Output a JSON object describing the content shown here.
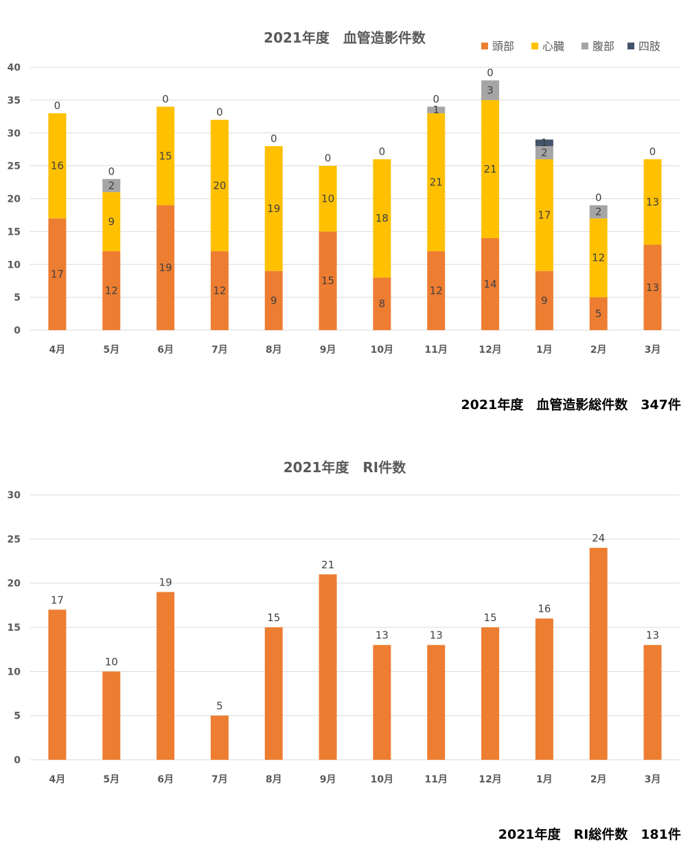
{
  "chart_data": [
    {
      "type": "bar",
      "stacked": true,
      "title": "2021年度　血管造影件数",
      "categories": [
        "4月",
        "5月",
        "6月",
        "7月",
        "8月",
        "9月",
        "10月",
        "11月",
        "12月",
        "1月",
        "2月",
        "3月"
      ],
      "ylim": [
        0,
        40
      ],
      "yticks": [
        0,
        5,
        10,
        15,
        20,
        25,
        30,
        35,
        40
      ],
      "grid": true,
      "legend_position": "top-right",
      "series": [
        {
          "name": "頭部",
          "color": "#ED7D31",
          "values": [
            17,
            12,
            19,
            12,
            9,
            15,
            8,
            12,
            14,
            9,
            5,
            13
          ]
        },
        {
          "name": "心臓",
          "color": "#FFC000",
          "values": [
            16,
            9,
            15,
            20,
            19,
            10,
            18,
            21,
            21,
            17,
            12,
            13
          ]
        },
        {
          "name": "腹部",
          "color": "#A5A5A5",
          "values": [
            0,
            2,
            0,
            0,
            0,
            0,
            0,
            1,
            3,
            2,
            2,
            0
          ]
        },
        {
          "name": "四肢",
          "color": "#44546A",
          "values": [
            0,
            0,
            0,
            0,
            0,
            0,
            0,
            0,
            0,
            1,
            0,
            0
          ]
        }
      ],
      "footer_total": "2021年度　血管造影総件数　347件"
    },
    {
      "type": "bar",
      "title": "2021年度　RI件数",
      "categories": [
        "4月",
        "5月",
        "6月",
        "7月",
        "8月",
        "9月",
        "10月",
        "11月",
        "12月",
        "1月",
        "2月",
        "3月"
      ],
      "ylim": [
        0,
        30
      ],
      "yticks": [
        0,
        5,
        10,
        15,
        20,
        25,
        30
      ],
      "grid": true,
      "series": [
        {
          "color": "#ED7D31",
          "values": [
            17,
            10,
            19,
            5,
            15,
            21,
            13,
            13,
            15,
            16,
            24,
            13
          ]
        }
      ],
      "footer_total": "2021年度　RI総件数　181件"
    }
  ]
}
